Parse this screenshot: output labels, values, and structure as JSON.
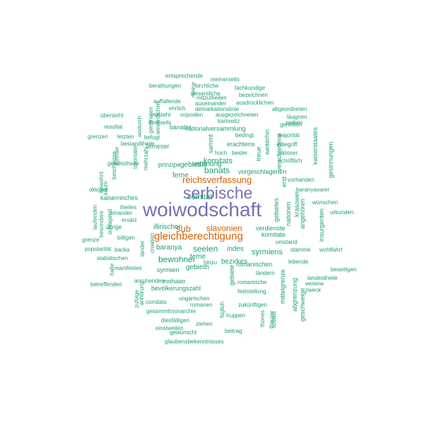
{
  "colors": {
    "teal": "#1b9e77",
    "orange": "#d95f02",
    "purple": "#7570b3"
  },
  "words": [
    {
      "text": "woiwodschaft",
      "color": "purple"
    },
    {
      "text": "serbische",
      "color": "purple"
    },
    {
      "text": "gleichberechtigung",
      "color": "orange"
    },
    {
      "text": "reichsverfassung",
      "color": "orange"
    },
    {
      "text": "slavonien",
      "color": "orange"
    },
    {
      "text": "sub",
      "color": "orange"
    },
    {
      "text": "banats",
      "color": "teal"
    },
    {
      "text": "bewohner",
      "color": "teal"
    },
    {
      "text": "seelen",
      "color": "teal"
    },
    {
      "text": "syrmiens",
      "color": "teal"
    },
    {
      "text": "komitats",
      "color": "teal"
    },
    {
      "text": "comitat",
      "color": "teal"
    },
    {
      "text": "baranya",
      "color": "teal"
    },
    {
      "text": "illirischen",
      "color": "teal"
    },
    {
      "text": "rechnung",
      "color": "teal"
    },
    {
      "text": "ferne",
      "color": "teal"
    },
    {
      "text": "gebiethe",
      "color": "teal"
    },
    {
      "text": "teme",
      "color": "teal"
    },
    {
      "text": "gebieth",
      "color": "teal"
    },
    {
      "text": "indes",
      "color": "teal"
    },
    {
      "text": "bezirkes",
      "color": "teal"
    },
    {
      "text": "romanischen",
      "color": "teal"
    },
    {
      "text": "prinzipe",
      "color": "teal"
    },
    {
      "text": "kaiserreiches",
      "color": "teal"
    },
    {
      "text": "vorgeschlagenen",
      "color": "teal"
    },
    {
      "text": "nationalversammlung",
      "color": "teal"
    },
    {
      "text": "banater",
      "color": "teal"
    },
    {
      "text": "temeser",
      "color": "teal"
    },
    {
      "text": "erachtens",
      "color": "teal"
    },
    {
      "text": "bevölkerungszahl",
      "color": "teal"
    },
    {
      "text": "syrmien",
      "color": "teal"
    },
    {
      "text": "mohaier",
      "color": "teal"
    },
    {
      "text": "verdienste",
      "color": "teal"
    },
    {
      "text": "umstand",
      "color": "teal"
    },
    {
      "text": "romanische",
      "color": "teal"
    },
    {
      "text": "feststellung",
      "color": "teal"
    },
    {
      "text": "zukünftigen",
      "color": "teal"
    },
    {
      "text": "ungarischen",
      "color": "teal"
    },
    {
      "text": "romanen",
      "color": "teal"
    },
    {
      "text": "gesammtmonarchie",
      "color": "teal"
    },
    {
      "text": "diesfälligen",
      "color": "teal"
    },
    {
      "text": "einstweilen",
      "color": "teal"
    },
    {
      "text": "ziehen",
      "color": "teal"
    },
    {
      "text": "truppen",
      "color": "teal"
    },
    {
      "text": "beitrag",
      "color": "teal"
    },
    {
      "text": "gewünscht",
      "color": "teal"
    },
    {
      "text": "glaubensbekenntnisses",
      "color": "teal"
    },
    {
      "text": "entsprechende",
      "color": "teal"
    },
    {
      "text": "meinerseits",
      "color": "teal"
    },
    {
      "text": "berathungen",
      "color": "teal"
    },
    {
      "text": "kirchliche",
      "color": "teal"
    },
    {
      "text": "fachkundige",
      "color": "teal"
    },
    {
      "text": "wesentliche",
      "color": "teal"
    },
    {
      "text": "mitzutheilen",
      "color": "teal"
    },
    {
      "text": "auffallende",
      "color": "teal"
    },
    {
      "text": "auseinander",
      "color": "teal"
    },
    {
      "text": "bezeichnen",
      "color": "teal"
    },
    {
      "text": "ausdrücklichen",
      "color": "teal"
    },
    {
      "text": "ehrlich",
      "color": "teal"
    },
    {
      "text": "demarkationslinie",
      "color": "teal"
    },
    {
      "text": "abgeordneten",
      "color": "teal"
    },
    {
      "text": "versteht",
      "color": "teal"
    },
    {
      "text": "vojvoden",
      "color": "teal"
    },
    {
      "text": "ausgezeichneten",
      "color": "teal"
    },
    {
      "text": "serben",
      "color": "teal"
    },
    {
      "text": "läugnen",
      "color": "teal"
    },
    {
      "text": "übersicht",
      "color": "teal"
    },
    {
      "text": "ihrerseits",
      "color": "teal"
    },
    {
      "text": "karlowitz",
      "color": "teal"
    },
    {
      "text": "gereiften",
      "color": "teal"
    },
    {
      "text": "resultat",
      "color": "teal"
    },
    {
      "text": "bedingt",
      "color": "teal"
    },
    {
      "text": "majorität",
      "color": "teal"
    },
    {
      "text": "grenzen",
      "color": "teal"
    },
    {
      "text": "letzten",
      "color": "teal"
    },
    {
      "text": "befugt",
      "color": "teal"
    },
    {
      "text": "inbegriff",
      "color": "teal"
    },
    {
      "text": "bestandtheile",
      "color": "teal"
    },
    {
      "text": "sikloser",
      "color": "teal"
    },
    {
      "text": "hoch",
      "color": "teal"
    },
    {
      "text": "beider",
      "color": "teal"
    },
    {
      "text": "schriftlich",
      "color": "teal"
    },
    {
      "text": "gebietstheile",
      "color": "teal"
    },
    {
      "text": "vorhanden",
      "color": "teal"
    },
    {
      "text": "baranyavarer",
      "color": "teal"
    },
    {
      "text": "oktober",
      "color": "teal"
    },
    {
      "text": "wünschen",
      "color": "teal"
    },
    {
      "text": "theiles",
      "color": "teal"
    },
    {
      "text": "urkunden",
      "color": "teal"
    },
    {
      "text": "einander",
      "color": "teal"
    },
    {
      "text": "ersatz",
      "color": "teal"
    },
    {
      "text": "übrige",
      "color": "teal"
    },
    {
      "text": "grenze",
      "color": "teal"
    },
    {
      "text": "billigen",
      "color": "teal"
    },
    {
      "text": "popularität",
      "color": "teal"
    },
    {
      "text": "backa",
      "color": "teal"
    },
    {
      "text": "stamme",
      "color": "teal"
    },
    {
      "text": "wohlfahrt",
      "color": "teal"
    },
    {
      "text": "statistischen",
      "color": "teal"
    },
    {
      "text": "lebende",
      "color": "teal"
    },
    {
      "text": "manifestes",
      "color": "teal"
    },
    {
      "text": "hinzu",
      "color": "teal"
    },
    {
      "text": "beseitigen",
      "color": "teal"
    },
    {
      "text": "ländern",
      "color": "teal"
    },
    {
      "text": "landestheile",
      "color": "teal"
    },
    {
      "text": "anruhenden",
      "color": "teal"
    },
    {
      "text": "vereine",
      "color": "teal"
    },
    {
      "text": "betreffenden",
      "color": "teal"
    },
    {
      "text": "zweck",
      "color": "teal"
    },
    {
      "text": "comitats",
      "color": "teal"
    },
    {
      "text": "kaiserstaates",
      "color": "teal",
      "vertical": true
    },
    {
      "text": "gesinnungen",
      "color": "teal",
      "vertical": true
    },
    {
      "text": "krasower",
      "color": "teal",
      "vertical": true
    },
    {
      "text": "insurgenten",
      "color": "teal",
      "vertical": true
    },
    {
      "text": "angehören",
      "color": "teal",
      "vertical": true
    },
    {
      "text": "nationen",
      "color": "teal",
      "vertical": true
    },
    {
      "text": "gebietes",
      "color": "teal",
      "vertical": true
    },
    {
      "text": "erst",
      "color": "teal",
      "vertical": true
    },
    {
      "text": "komitate",
      "color": "teal"
    },
    {
      "text": "treue",
      "color": "teal",
      "vertical": true
    },
    {
      "text": "verschiedene",
      "color": "teal",
      "vertical": true
    },
    {
      "text": "weiterhin",
      "color": "teal",
      "vertical": true
    },
    {
      "text": "sammt",
      "color": "teal",
      "vertical": true
    },
    {
      "text": "mittelgrenze",
      "color": "teal",
      "vertical": true
    },
    {
      "text": "abgrenzung",
      "color": "teal",
      "vertical": true
    },
    {
      "text": "geschweige",
      "color": "teal",
      "vertical": true
    },
    {
      "text": "thones",
      "color": "teal",
      "vertical": true
    },
    {
      "text": "sobald",
      "color": "teal",
      "vertical": true
    },
    {
      "text": "theurer",
      "color": "teal",
      "vertical": true
    },
    {
      "text": "füglich",
      "color": "teal",
      "vertical": true
    },
    {
      "text": "gebiete",
      "color": "teal",
      "vertical": true
    },
    {
      "text": "laufenden",
      "color": "teal",
      "vertical": true
    },
    {
      "text": "besondere",
      "color": "teal",
      "vertical": true
    },
    {
      "text": "schlagend",
      "color": "teal",
      "vertical": true
    },
    {
      "text": "halte",
      "color": "teal",
      "vertical": true
    },
    {
      "text": "länder",
      "color": "teal",
      "vertical": true
    },
    {
      "text": "croatien",
      "color": "teal",
      "vertical": true
    },
    {
      "text": "zufolge",
      "color": "teal",
      "vertical": true
    },
    {
      "text": "anhörung",
      "color": "teal",
      "vertical": true
    },
    {
      "text": "kaum",
      "color": "teal",
      "vertical": true
    },
    {
      "text": "beschlüsse",
      "color": "teal",
      "vertical": true
    },
    {
      "text": "bewohnt",
      "color": "teal",
      "vertical": true
    },
    {
      "text": "syrmier",
      "color": "teal",
      "vertical": true
    },
    {
      "text": "torontaler",
      "color": "teal",
      "vertical": true
    },
    {
      "text": "mehrzahl",
      "color": "teal",
      "vertical": true
    },
    {
      "text": "wodurch",
      "color": "teal",
      "vertical": true
    },
    {
      "text": "genannten",
      "color": "teal",
      "vertical": true
    },
    {
      "text": "wesentlichen",
      "color": "teal",
      "vertical": true
    },
    {
      "text": "meine",
      "color": "teal",
      "vertical": true
    }
  ]
}
